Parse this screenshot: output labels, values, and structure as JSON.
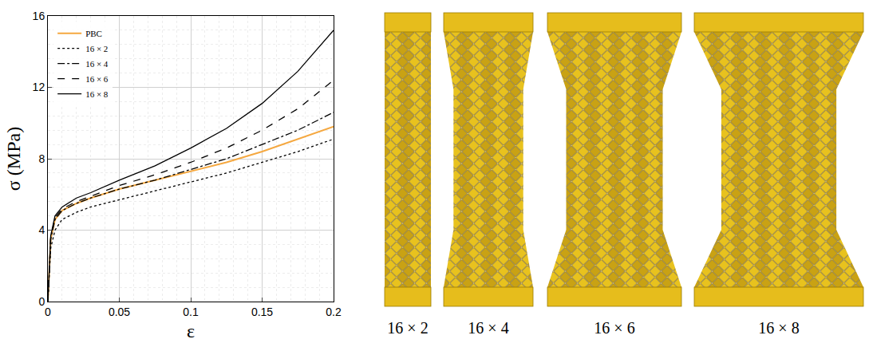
{
  "chart_data": {
    "type": "line",
    "x_label": "ε",
    "y_label": "σ (MPa)",
    "xlim": [
      0,
      0.2
    ],
    "xticks": [
      0,
      0.05,
      0.1,
      0.15,
      0.2
    ],
    "ylim": [
      0,
      16
    ],
    "yticks": [
      0,
      4,
      8,
      12,
      16
    ],
    "grid": true,
    "legend": "top-left",
    "x": [
      0,
      0.002,
      0.005,
      0.01,
      0.02,
      0.03,
      0.05,
      0.075,
      0.1,
      0.125,
      0.15,
      0.175,
      0.2
    ],
    "series": [
      {
        "name": "PBC",
        "color": "#f5a840",
        "line_style": "solid",
        "values": [
          0,
          3.5,
          4.6,
          5.1,
          5.5,
          5.8,
          6.3,
          6.8,
          7.3,
          7.8,
          8.4,
          9.1,
          9.8
        ]
      },
      {
        "name": "16 × 2",
        "color": "#000000",
        "line_style": "dotted",
        "values": [
          0,
          3.0,
          4.0,
          4.6,
          5.0,
          5.3,
          5.7,
          6.2,
          6.7,
          7.2,
          7.8,
          8.4,
          9.1
        ]
      },
      {
        "name": "16 × 4",
        "color": "#000000",
        "line_style": "dashdot",
        "values": [
          0,
          3.5,
          4.6,
          5.1,
          5.5,
          5.8,
          6.3,
          6.8,
          7.4,
          8.0,
          8.8,
          9.6,
          10.6
        ]
      },
      {
        "name": "16 × 6",
        "color": "#000000",
        "line_style": "dashed",
        "values": [
          0,
          3.6,
          4.7,
          5.2,
          5.6,
          5.9,
          6.5,
          7.1,
          7.8,
          8.6,
          9.6,
          10.8,
          12.4
        ]
      },
      {
        "name": "16 × 8",
        "color": "#000000",
        "line_style": "solid",
        "values": [
          0,
          3.7,
          4.8,
          5.3,
          5.8,
          6.1,
          6.8,
          7.6,
          8.6,
          9.7,
          11.1,
          12.9,
          15.2
        ]
      }
    ]
  },
  "specimens": [
    {
      "label": "16 × 2"
    },
    {
      "label": "16 × 4"
    },
    {
      "label": "16 × 6"
    },
    {
      "label": "16 × 8"
    }
  ]
}
